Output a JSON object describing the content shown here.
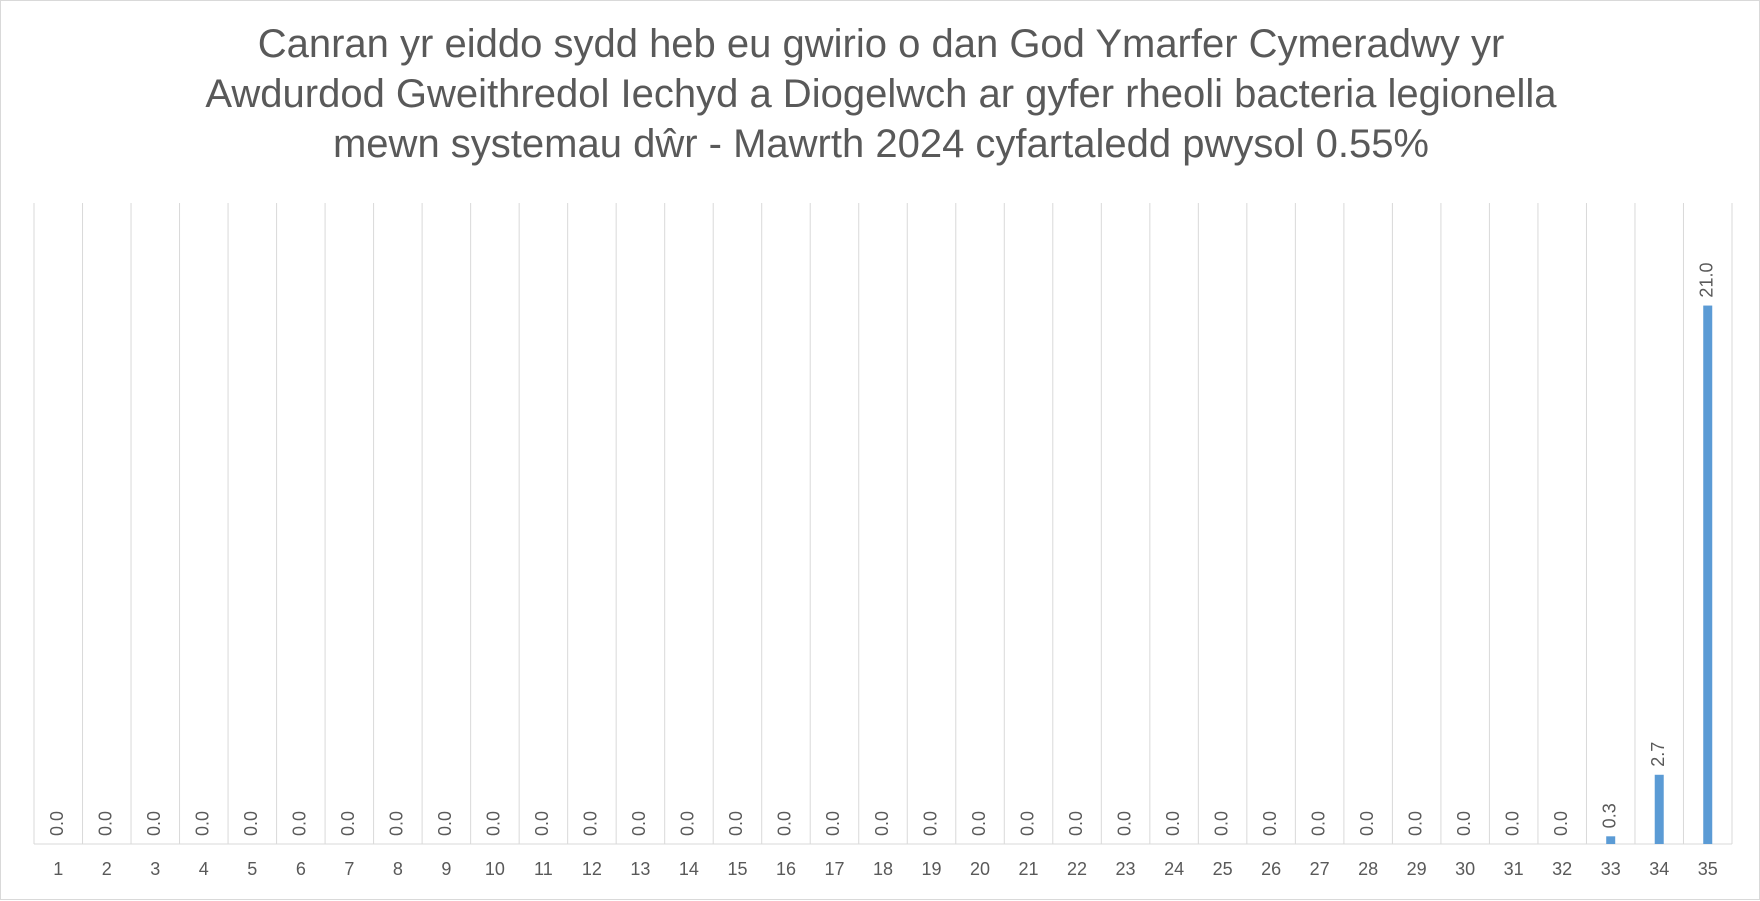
{
  "chart_data": {
    "type": "bar",
    "title": "Canran yr eiddo sydd heb eu gwirio o dan God Ymarfer Cymeradwy yr Awdurdod Gweithredol Iechyd a Diogelwch ar gyfer rheoli bacteria legionella mewn systemau dŵr - Mawrth 2024 cyfartaledd pwysol 0.55%",
    "categories": [
      "1",
      "2",
      "3",
      "4",
      "5",
      "6",
      "7",
      "8",
      "9",
      "10",
      "11",
      "12",
      "13",
      "14",
      "15",
      "16",
      "17",
      "18",
      "19",
      "20",
      "21",
      "22",
      "23",
      "24",
      "25",
      "26",
      "27",
      "28",
      "29",
      "30",
      "31",
      "32",
      "33",
      "34",
      "35"
    ],
    "values": [
      0,
      0,
      0,
      0,
      0,
      0,
      0,
      0,
      0,
      0,
      0,
      0,
      0,
      0,
      0,
      0,
      0,
      0,
      0,
      0,
      0,
      0,
      0,
      0,
      0,
      0,
      0,
      0,
      0,
      0,
      0,
      0,
      0.3,
      2.7,
      21.0
    ],
    "value_labels": [
      "0.0",
      "0.0",
      "0.0",
      "0.0",
      "0.0",
      "0.0",
      "0.0",
      "0.0",
      "0.0",
      "0.0",
      "0.0",
      "0.0",
      "0.0",
      "0.0",
      "0.0",
      "0.0",
      "0.0",
      "0.0",
      "0.0",
      "0.0",
      "0.0",
      "0.0",
      "0.0",
      "0.0",
      "0.0",
      "0.0",
      "0.0",
      "0.0",
      "0.0",
      "0.0",
      "0.0",
      "0.0",
      "0.3",
      "2.7",
      "21.0"
    ],
    "color": "#5b9bd5"
  }
}
